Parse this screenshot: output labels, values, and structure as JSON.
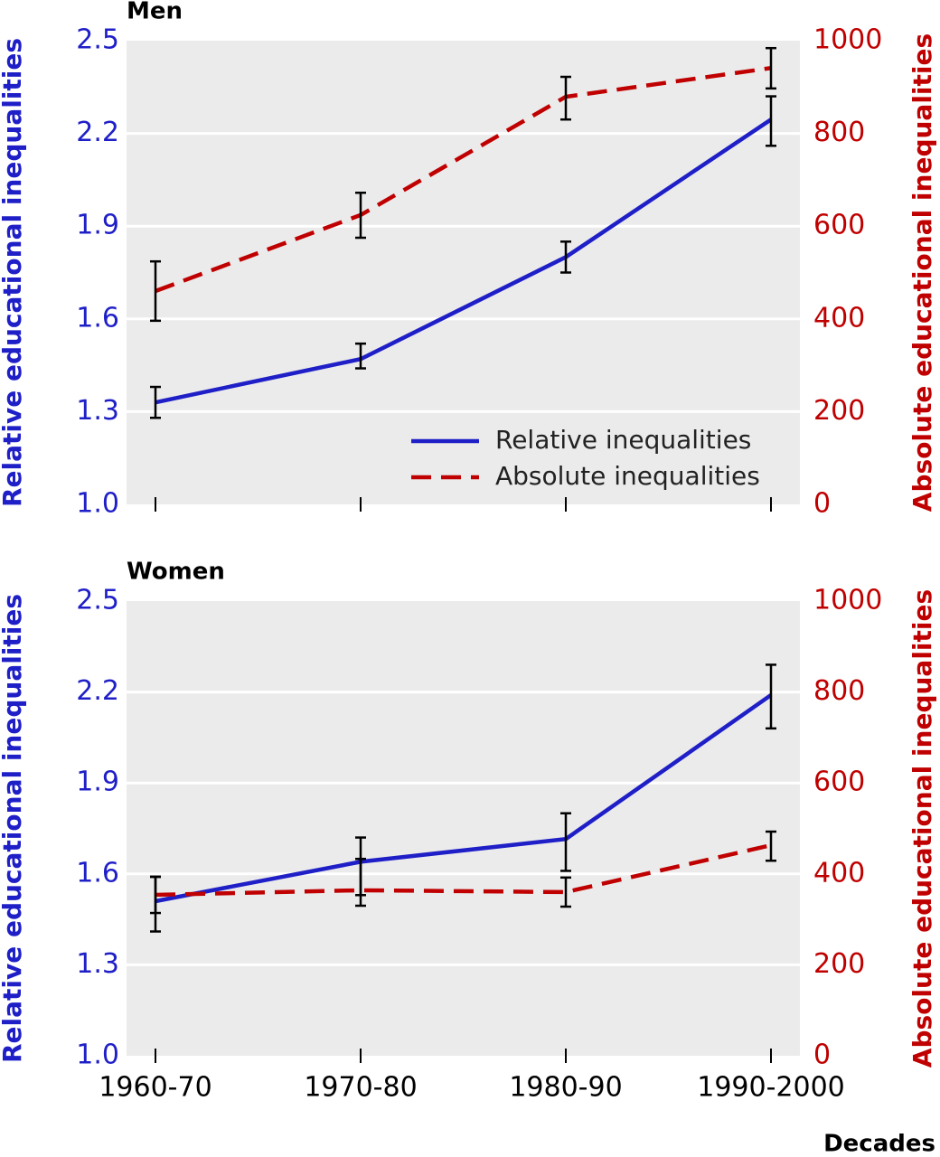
{
  "chart_data": [
    {
      "type": "line",
      "title": "Men",
      "y_label": "Relative educational inequalities",
      "y2_label": "Absolute educational inequalities",
      "ylim": [
        1.0,
        2.5
      ],
      "yticks": [
        {
          "value": 1.0,
          "label": "1.0"
        },
        1.3,
        1.6,
        1.9,
        2.2,
        2.5
      ],
      "y2lim": [
        0,
        1000
      ],
      "y2ticks": [
        0,
        200,
        400,
        600,
        800,
        1000
      ],
      "grid": true,
      "legend": "lower right",
      "series": [
        {
          "name": "Relative inequalities",
          "color": "#1f1fc8",
          "dashed": false,
          "values": [
            1.33,
            1.47,
            1.8,
            2.245
          ],
          "lower": [
            1.28,
            1.44,
            1.75,
            2.16
          ],
          "upper": [
            1.38,
            1.52,
            1.85,
            2.32
          ]
        },
        {
          "name": "Absolute inequalities",
          "color": "#c00000",
          "dashed": true,
          "axis": "y2",
          "values": [
            460,
            624,
            879,
            941
          ],
          "lower": [
            396,
            575,
            830,
            897
          ],
          "upper": [
            524,
            672,
            922,
            984
          ]
        }
      ]
    },
    {
      "type": "line",
      "title": "Women",
      "y_label": "Relative educational inequalities",
      "y2_label": "Absolute educational inequalities",
      "x_label": "Decades",
      "categories": [
        "1960-70",
        "1970-80",
        "1980-90",
        "1990-2000"
      ],
      "ylim": [
        1.0,
        2.5
      ],
      "yticks": [
        {
          "value": 1.0,
          "label": "1.0"
        },
        1.3,
        1.6,
        1.9,
        2.2,
        2.5
      ],
      "y2lim": [
        0,
        1000
      ],
      "y2ticks": [
        0,
        200,
        400,
        600,
        800,
        1000
      ],
      "grid": true,
      "series": [
        {
          "color": "#1f1fc8",
          "dashed": false,
          "values": [
            1.51,
            1.64,
            1.715,
            2.19
          ],
          "lower": [
            1.41,
            1.53,
            1.61,
            2.08
          ],
          "upper": [
            1.59,
            1.72,
            1.8,
            2.29
          ]
        },
        {
          "color": "#c00000",
          "dashed": true,
          "axis": "y2",
          "values": [
            354,
            364,
            360,
            463
          ],
          "lower": [
            314,
            330,
            328,
            429
          ],
          "upper": [
            394,
            433,
            392,
            493
          ]
        }
      ]
    }
  ]
}
